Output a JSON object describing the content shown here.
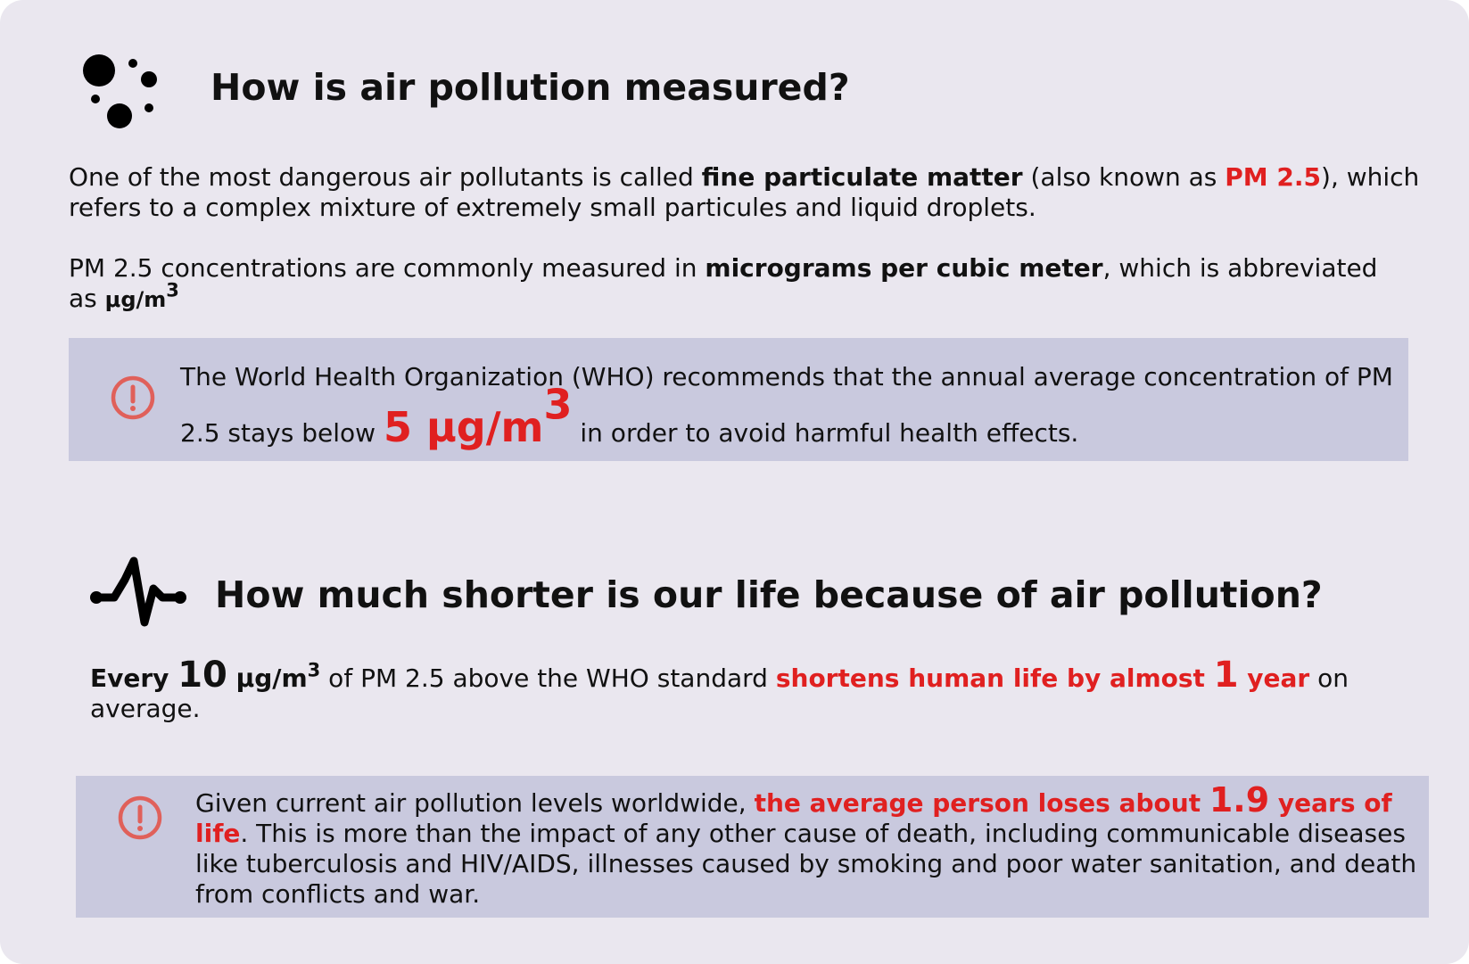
{
  "section1": {
    "icon": "particles-icon",
    "title": "How is air pollution measured?",
    "para1": {
      "t1": "One of the most dangerous air pollutants is called ",
      "b1": "fine particulate matter",
      "t2": " (also known as ",
      "r1": "PM 2.5",
      "t3": "), which refers to a complex mixture of extremely small particules and liquid droplets."
    },
    "para2": {
      "t1": "PM 2.5 concentrations are commonly measured in ",
      "b1": "micrograms per cubic meter",
      "t2": ", which is abbreviated as ",
      "unit": "μg/m",
      "sup": "3"
    },
    "callout": {
      "icon": "alert-circle-icon",
      "t1": "The World Health Organization (WHO) recommends that the annual average concentration of PM 2.5 stays below ",
      "value": "5 μg/m",
      "sup": "3",
      "t2": " in order to avoid harmful health effects."
    }
  },
  "section2": {
    "icon": "heartbeat-icon",
    "title": "How much shorter is our life because of air pollution?",
    "para": {
      "b1": "Every ",
      "num": "10",
      "b2": " μg/m",
      "sup": "3",
      "t1": " of PM 2.5 above the WHO standard ",
      "r1": "shortens human life by almost ",
      "rnum": "1",
      "r2": " year",
      "t2": " on average."
    },
    "callout": {
      "icon": "alert-circle-icon",
      "t1": "Given current air pollution levels worldwide, ",
      "r1": "the average person loses about ",
      "rnum": "1.9",
      "r2": " years of life",
      "t2": ". This is more than the impact of any other cause of death, including communicable diseases like tuberculosis and HIV/AIDS, illnesses caused by smoking and poor water sanitation, and death from conflicts and war."
    }
  },
  "colors": {
    "background": "#eae7ef",
    "callout": "#c9c9de",
    "accent_red": "#e02020",
    "alert_icon": "#e0605a"
  }
}
